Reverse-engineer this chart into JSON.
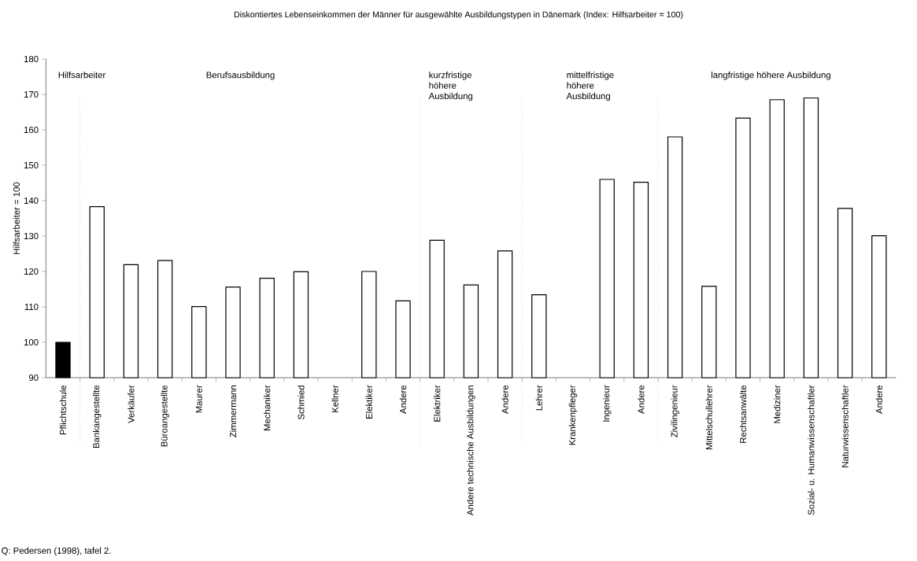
{
  "chart_data": {
    "type": "bar",
    "title": "Diskontiertes Lebenseinkommen der Männer für ausgewählte Ausbildungstypen in Dänemark (Index: Hilfsarbeiter = 100)",
    "ylabel": "Hilfsarbeiter = 100",
    "categories": [
      "Pflichtschule",
      "Bankangestellte",
      "Verkäufer",
      "Büroangestellte",
      "Maurer",
      "Zimmermann",
      "Mechaniker",
      "Schmied",
      "Kellner",
      "Elektiker",
      "Andere",
      "Elektriker",
      "Andere technische Ausbildungen",
      "Andere",
      "Lehrer",
      "Krankenpfleger",
      "Ingenieur",
      "Andere",
      "Zivilingenieur",
      "Mittelschullehrer",
      "Rechtsanwälte",
      "Mediziner",
      "Sozial- u. Humanwissenschaftler",
      "Naturwissenschaftler",
      "Andere"
    ],
    "values": [
      100,
      138.3,
      121.9,
      123.1,
      110.1,
      115.6,
      118.1,
      119.9,
      null,
      120.0,
      111.7,
      128.8,
      116.2,
      125.8,
      113.4,
      null,
      146.0,
      145.2,
      158.0,
      115.8,
      163.3,
      168.5,
      169.0,
      137.8,
      130.1
    ],
    "colors": [
      "#000000",
      "#ffffff",
      "#ffffff",
      "#ffffff",
      "#ffffff",
      "#ffffff",
      "#ffffff",
      "#ffffff",
      "#ffffff",
      "#ffffff",
      "#ffffff",
      "#ffffff",
      "#ffffff",
      "#ffffff",
      "#ffffff",
      "#ffffff",
      "#ffffff",
      "#ffffff",
      "#ffffff",
      "#ffffff",
      "#ffffff",
      "#ffffff",
      "#ffffff",
      "#ffffff",
      "#ffffff"
    ],
    "ylim": [
      90,
      180
    ],
    "yticks": [
      90,
      100,
      110,
      120,
      130,
      140,
      150,
      160,
      170,
      180
    ],
    "annotations": [
      "Hilfsarbeiter",
      "Berufsausbildung",
      "kurzfristige höhere Ausbildung",
      "mittelfristige höhere Ausbildung",
      "langfristige höhere Ausbildung",
      "Q: Pedersen (1998), tafel 2."
    ]
  }
}
